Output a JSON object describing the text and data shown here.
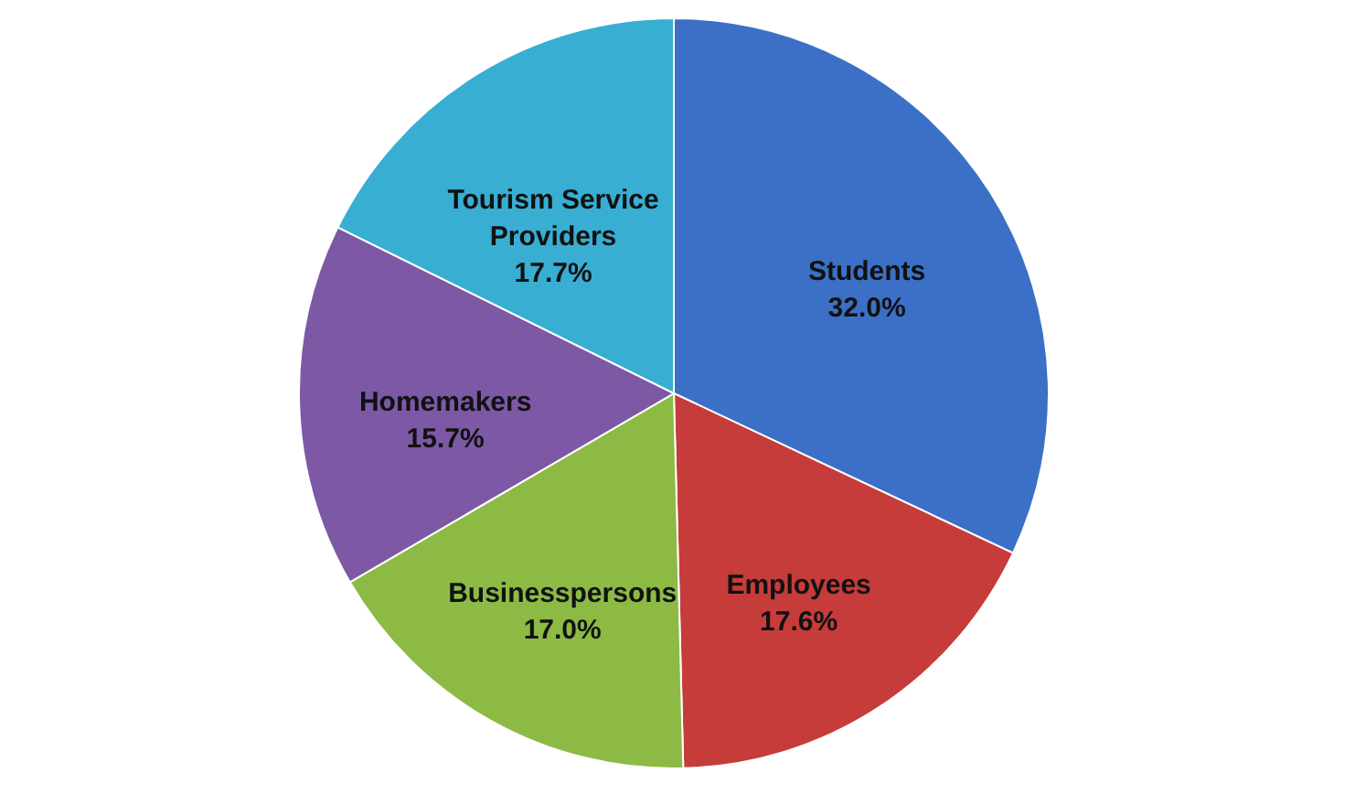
{
  "chart_data": {
    "type": "pie",
    "categories": [
      "Students",
      "Employees",
      "Businesspersons",
      "Homemakers",
      "Tourism Service Providers"
    ],
    "values": [
      32.0,
      17.6,
      17.0,
      15.7,
      17.7
    ],
    "value_labels": [
      "32.0%",
      "17.6%",
      "17.0%",
      "15.7%",
      "17.7%"
    ],
    "colors": [
      "#3b70c6",
      "#c63c3a",
      "#8dba45",
      "#7c58a5",
      "#38aed2"
    ],
    "legend": false
  }
}
